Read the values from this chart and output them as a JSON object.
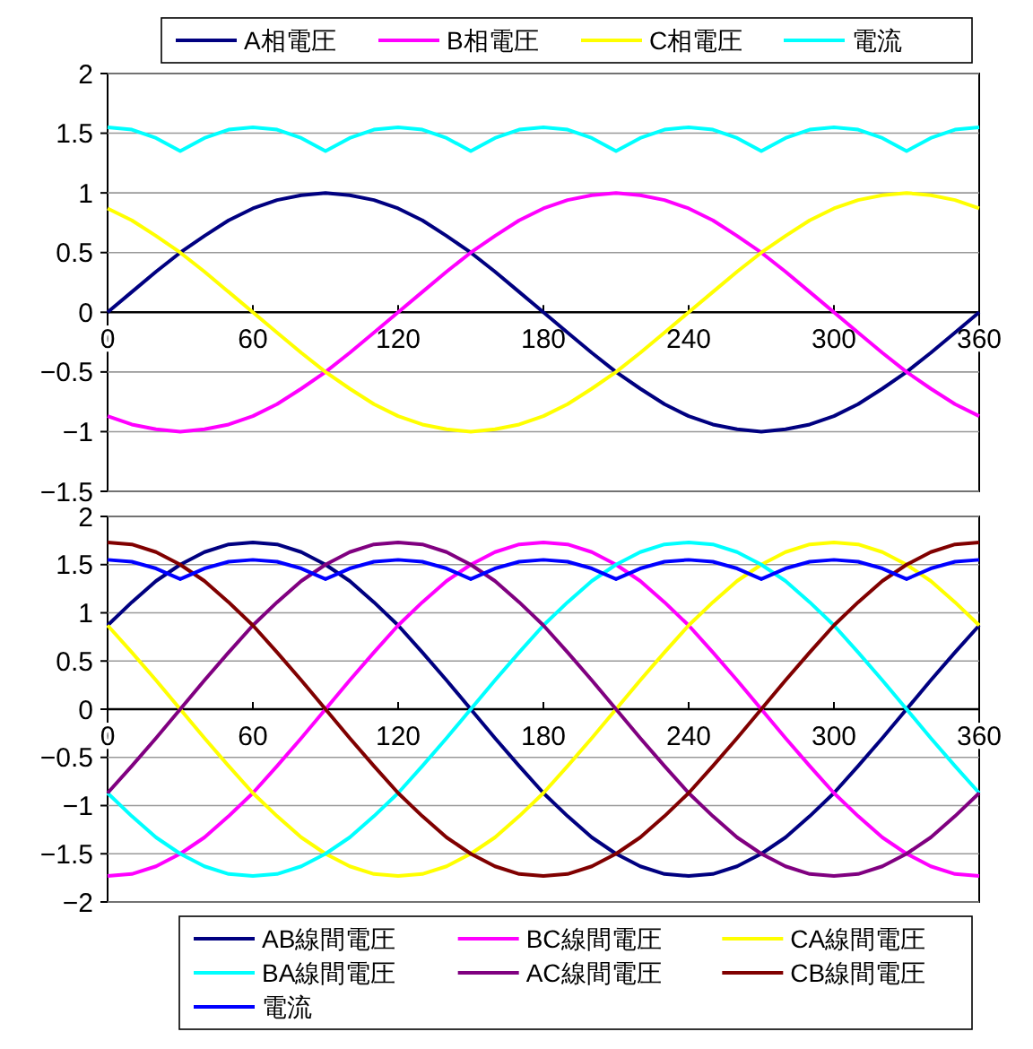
{
  "chart_data": [
    {
      "type": "line",
      "x": [
        0,
        10,
        20,
        30,
        40,
        50,
        60,
        70,
        80,
        90,
        100,
        110,
        120,
        130,
        140,
        150,
        160,
        170,
        180,
        190,
        200,
        210,
        220,
        230,
        240,
        250,
        260,
        270,
        280,
        290,
        300,
        310,
        320,
        330,
        340,
        350,
        360
      ],
      "xlim": [
        0,
        360
      ],
      "xticks": [
        0,
        60,
        120,
        180,
        240,
        300,
        360
      ],
      "ylim": [
        -1.5,
        2
      ],
      "yticks": [
        -1.5,
        -1,
        -0.5,
        0,
        0.5,
        1,
        1.5,
        2
      ],
      "grid": "y",
      "legend": "top",
      "series": [
        {
          "name": "A相電圧",
          "color": "#000080",
          "values": [
            0,
            0.17,
            0.34,
            0.5,
            0.64,
            0.77,
            0.87,
            0.94,
            0.98,
            1,
            0.98,
            0.94,
            0.87,
            0.77,
            0.64,
            0.5,
            0.34,
            0.17,
            0,
            -0.17,
            -0.34,
            -0.5,
            -0.64,
            -0.77,
            -0.87,
            -0.94,
            -0.98,
            -1,
            -0.98,
            -0.94,
            -0.87,
            -0.77,
            -0.64,
            -0.5,
            -0.34,
            -0.17,
            0
          ]
        },
        {
          "name": "B相電圧",
          "color": "#ff00ff",
          "values": [
            -0.87,
            -0.94,
            -0.98,
            -1,
            -0.98,
            -0.94,
            -0.87,
            -0.77,
            -0.64,
            -0.5,
            -0.34,
            -0.17,
            0,
            0.17,
            0.34,
            0.5,
            0.64,
            0.77,
            0.87,
            0.94,
            0.98,
            1,
            0.98,
            0.94,
            0.87,
            0.77,
            0.64,
            0.5,
            0.34,
            0.17,
            0,
            -0.17,
            -0.34,
            -0.5,
            -0.64,
            -0.77,
            -0.87
          ]
        },
        {
          "name": "C相電圧",
          "color": "#ffff00",
          "values": [
            0.87,
            0.77,
            0.64,
            0.5,
            0.34,
            0.17,
            0,
            -0.17,
            -0.34,
            -0.5,
            -0.64,
            -0.77,
            -0.87,
            -0.94,
            -0.98,
            -1,
            -0.98,
            -0.94,
            -0.87,
            -0.77,
            -0.64,
            -0.5,
            -0.34,
            -0.17,
            0,
            0.17,
            0.34,
            0.5,
            0.64,
            0.77,
            0.87,
            0.94,
            0.98,
            1,
            0.98,
            0.94,
            0.87
          ]
        },
        {
          "name": "電流",
          "color": "#00ffff",
          "values": [
            1.55,
            1.53,
            1.46,
            1.35,
            1.46,
            1.53,
            1.55,
            1.53,
            1.46,
            1.35,
            1.46,
            1.53,
            1.55,
            1.53,
            1.46,
            1.35,
            1.46,
            1.53,
            1.55,
            1.53,
            1.46,
            1.35,
            1.46,
            1.53,
            1.55,
            1.53,
            1.46,
            1.35,
            1.46,
            1.53,
            1.55,
            1.53,
            1.46,
            1.35,
            1.46,
            1.53,
            1.55
          ]
        }
      ]
    },
    {
      "type": "line",
      "x": [
        0,
        10,
        20,
        30,
        40,
        50,
        60,
        70,
        80,
        90,
        100,
        110,
        120,
        130,
        140,
        150,
        160,
        170,
        180,
        190,
        200,
        210,
        220,
        230,
        240,
        250,
        260,
        270,
        280,
        290,
        300,
        310,
        320,
        330,
        340,
        350,
        360
      ],
      "xlim": [
        0,
        360
      ],
      "xticks": [
        0,
        60,
        120,
        180,
        240,
        300,
        360
      ],
      "ylim": [
        -2,
        2
      ],
      "yticks": [
        -2,
        -1.5,
        -1,
        -0.5,
        0,
        0.5,
        1,
        1.5,
        2
      ],
      "grid": "y",
      "legend": "bottom",
      "series": [
        {
          "name": "AB線間電圧",
          "color": "#000080",
          "values": [
            0.87,
            1.11,
            1.33,
            1.5,
            1.63,
            1.71,
            1.73,
            1.71,
            1.63,
            1.5,
            1.33,
            1.11,
            0.87,
            0.59,
            0.3,
            0,
            -0.3,
            -0.59,
            -0.87,
            -1.11,
            -1.33,
            -1.5,
            -1.63,
            -1.71,
            -1.73,
            -1.71,
            -1.63,
            -1.5,
            -1.33,
            -1.11,
            -0.87,
            -0.59,
            -0.3,
            0,
            0.3,
            0.59,
            0.87
          ]
        },
        {
          "name": "BC線間電圧",
          "color": "#ff00ff",
          "values": [
            -1.73,
            -1.71,
            -1.63,
            -1.5,
            -1.33,
            -1.11,
            -0.87,
            -0.59,
            -0.3,
            0,
            0.3,
            0.59,
            0.87,
            1.11,
            1.33,
            1.5,
            1.63,
            1.71,
            1.73,
            1.71,
            1.63,
            1.5,
            1.33,
            1.11,
            0.87,
            0.59,
            0.3,
            0,
            -0.3,
            -0.59,
            -0.87,
            -1.11,
            -1.33,
            -1.5,
            -1.63,
            -1.71,
            -1.73
          ]
        },
        {
          "name": "CA線間電圧",
          "color": "#ffff00",
          "values": [
            0.87,
            0.59,
            0.3,
            0,
            -0.3,
            -0.59,
            -0.87,
            -1.11,
            -1.33,
            -1.5,
            -1.63,
            -1.71,
            -1.73,
            -1.71,
            -1.63,
            -1.5,
            -1.33,
            -1.11,
            -0.87,
            -0.59,
            -0.3,
            0,
            0.3,
            0.59,
            0.87,
            1.11,
            1.33,
            1.5,
            1.63,
            1.71,
            1.73,
            1.71,
            1.63,
            1.5,
            1.33,
            1.11,
            0.87
          ]
        },
        {
          "name": "BA線間電圧",
          "color": "#00ffff",
          "values": [
            -0.87,
            -1.11,
            -1.33,
            -1.5,
            -1.63,
            -1.71,
            -1.73,
            -1.71,
            -1.63,
            -1.5,
            -1.33,
            -1.11,
            -0.87,
            -0.59,
            -0.3,
            0,
            0.3,
            0.59,
            0.87,
            1.11,
            1.33,
            1.5,
            1.63,
            1.71,
            1.73,
            1.71,
            1.63,
            1.5,
            1.33,
            1.11,
            0.87,
            0.59,
            0.3,
            0,
            -0.3,
            -0.59,
            -0.87
          ]
        },
        {
          "name": "AC線間電圧",
          "color": "#800080",
          "values": [
            -0.87,
            -0.59,
            -0.3,
            0,
            0.3,
            0.59,
            0.87,
            1.11,
            1.33,
            1.5,
            1.63,
            1.71,
            1.73,
            1.71,
            1.63,
            1.5,
            1.33,
            1.11,
            0.87,
            0.59,
            0.3,
            0,
            -0.3,
            -0.59,
            -0.87,
            -1.11,
            -1.33,
            -1.5,
            -1.63,
            -1.71,
            -1.73,
            -1.71,
            -1.63,
            -1.5,
            -1.33,
            -1.11,
            -0.87
          ]
        },
        {
          "name": "CB線間電圧",
          "color": "#800000",
          "values": [
            1.73,
            1.71,
            1.63,
            1.5,
            1.33,
            1.11,
            0.87,
            0.59,
            0.3,
            0,
            -0.3,
            -0.59,
            -0.87,
            -1.11,
            -1.33,
            -1.5,
            -1.63,
            -1.71,
            -1.73,
            -1.71,
            -1.63,
            -1.5,
            -1.33,
            -1.11,
            -0.87,
            -0.59,
            -0.3,
            0,
            0.3,
            0.59,
            0.87,
            1.11,
            1.33,
            1.5,
            1.63,
            1.71,
            1.73
          ]
        },
        {
          "name": "電流",
          "color": "#0000ff",
          "values": [
            1.55,
            1.53,
            1.46,
            1.35,
            1.46,
            1.53,
            1.55,
            1.53,
            1.46,
            1.35,
            1.46,
            1.53,
            1.55,
            1.53,
            1.46,
            1.35,
            1.46,
            1.53,
            1.55,
            1.53,
            1.46,
            1.35,
            1.46,
            1.53,
            1.55,
            1.53,
            1.46,
            1.35,
            1.46,
            1.53,
            1.55,
            1.53,
            1.46,
            1.35,
            1.46,
            1.53,
            1.55
          ]
        }
      ]
    }
  ]
}
